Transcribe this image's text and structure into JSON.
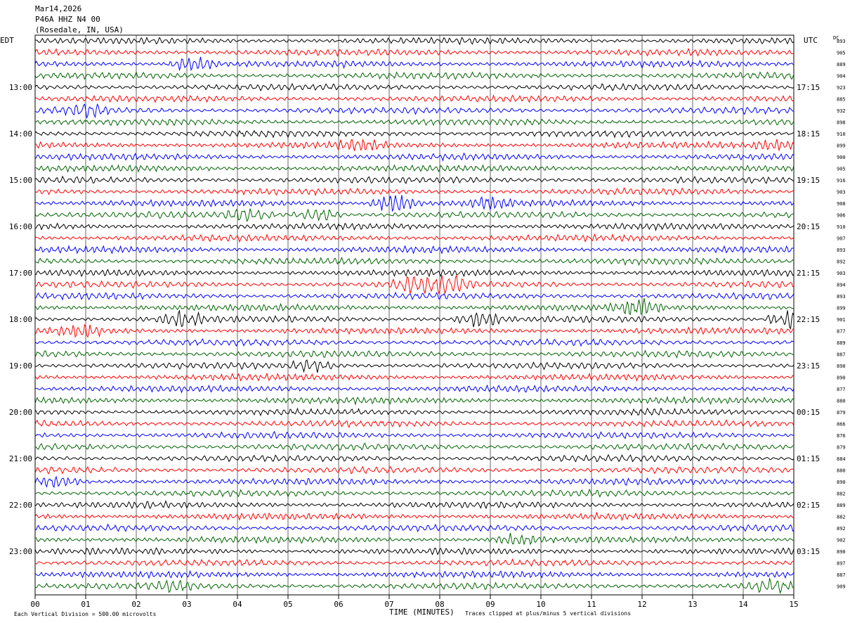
{
  "header": {
    "date": "Mar14,2026",
    "station": "P46A HHZ N4 00",
    "location": "(Rosedale, IN, USA)"
  },
  "left_tz": "EDT",
  "right_tz": "UTC",
  "dc_header": "DC",
  "footer": {
    "scale_note": "Each Vertical Division =  500.00 microvolts",
    "clip_note": "Traces clipped at plus/minus 5 vertical divisions"
  },
  "colors": {
    "trace_cycle": [
      "#000000",
      "#ff0000",
      "#0000ff",
      "#006400"
    ],
    "grid": "#000000"
  },
  "chart_data": {
    "type": "line",
    "title": "",
    "xlabel": "TIME (MINUTES)",
    "ylabel": "",
    "x_ticks": [
      "00",
      "01",
      "02",
      "03",
      "04",
      "05",
      "06",
      "07",
      "08",
      "09",
      "10",
      "11",
      "12",
      "13",
      "14",
      "15"
    ],
    "xlim": [
      0,
      15
    ],
    "rows": 48,
    "minutes_per_row": 15,
    "grid": true,
    "left_hour_labels": [
      "13:00",
      "14:00",
      "15:00",
      "16:00",
      "17:00",
      "18:00",
      "19:00",
      "20:00",
      "21:00",
      "22:00",
      "23:00"
    ],
    "right_hour_labels": [
      "17:15",
      "18:15",
      "19:15",
      "20:15",
      "21:15",
      "22:15",
      "23:15",
      "00:15",
      "01:15",
      "02:15",
      "03:15"
    ],
    "hour_label_rows": [
      4,
      8,
      12,
      16,
      20,
      24,
      28,
      32,
      36,
      40,
      44
    ],
    "dc_offsets": [
      893,
      905,
      889,
      904,
      923,
      885,
      932,
      898,
      910,
      899,
      900,
      905,
      916,
      903,
      908,
      906,
      910,
      907,
      893,
      892,
      903,
      894,
      893,
      899,
      901,
      877,
      889,
      887,
      890,
      890,
      877,
      880,
      879,
      866,
      876,
      879,
      884,
      880,
      890,
      882,
      889,
      882,
      892,
      902,
      890,
      897,
      887,
      909
    ],
    "events": [
      {
        "row": 2,
        "minute": 3.1,
        "amplitude": 2.2
      },
      {
        "row": 6,
        "minute": 1.0,
        "amplitude": 1.8
      },
      {
        "row": 9,
        "minute": 6.4,
        "amplitude": 1.6
      },
      {
        "row": 9,
        "minute": 14.6,
        "amplitude": 1.6
      },
      {
        "row": 14,
        "minute": 7.1,
        "amplitude": 3.0
      },
      {
        "row": 14,
        "minute": 9.0,
        "amplitude": 1.6
      },
      {
        "row": 15,
        "minute": 4.2,
        "amplitude": 2.0
      },
      {
        "row": 15,
        "minute": 5.6,
        "amplitude": 2.0
      },
      {
        "row": 21,
        "minute": 7.5,
        "amplitude": 2.4
      },
      {
        "row": 21,
        "minute": 8.2,
        "amplitude": 2.4
      },
      {
        "row": 23,
        "minute": 11.9,
        "amplitude": 2.4
      },
      {
        "row": 24,
        "minute": 2.9,
        "amplitude": 2.0
      },
      {
        "row": 24,
        "minute": 8.8,
        "amplitude": 2.2
      },
      {
        "row": 24,
        "minute": 14.9,
        "amplitude": 2.6
      },
      {
        "row": 25,
        "minute": 0.9,
        "amplitude": 1.6
      },
      {
        "row": 28,
        "minute": 5.5,
        "amplitude": 1.5
      },
      {
        "row": 38,
        "minute": 0.4,
        "amplitude": 1.6
      },
      {
        "row": 43,
        "minute": 9.5,
        "amplitude": 1.5
      },
      {
        "row": 47,
        "minute": 2.7,
        "amplitude": 1.5
      },
      {
        "row": 47,
        "minute": 14.5,
        "amplitude": 1.5
      }
    ]
  }
}
